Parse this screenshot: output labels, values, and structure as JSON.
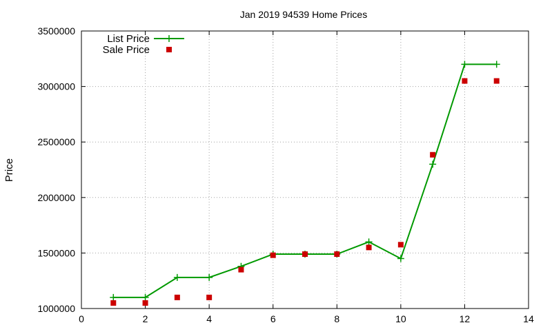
{
  "colors": {
    "list_price": "#009900",
    "sale_price": "#cc0000",
    "grid": "#a0a0a0",
    "axis": "#000000",
    "background": "#ffffff"
  },
  "chart_data": {
    "type": "line",
    "title": "Jan 2019 94539 Home Prices",
    "xlabel": "",
    "ylabel": "Price",
    "xlim": [
      0,
      14
    ],
    "ylim": [
      1000000,
      3500000
    ],
    "x_ticks": [
      0,
      2,
      4,
      6,
      8,
      10,
      12,
      14
    ],
    "y_ticks": [
      1000000,
      1500000,
      2000000,
      2500000,
      3000000,
      3500000
    ],
    "x_tick_labels": [
      "0",
      "2",
      "4",
      "6",
      "8",
      "10",
      "12",
      "14"
    ],
    "y_tick_labels": [
      "1000000",
      "1500000",
      "2000000",
      "2500000",
      "3000000",
      "3500000"
    ],
    "grid": true,
    "legend_position": "top-left",
    "series": [
      {
        "name": "List Price",
        "style": "lines with plus markers",
        "color": "#009900",
        "x": [
          1,
          2,
          3,
          4,
          5,
          6,
          7,
          8,
          9,
          10,
          11,
          12,
          13
        ],
        "y": [
          1100000,
          1100000,
          1280000,
          1280000,
          1380000,
          1490000,
          1490000,
          1490000,
          1600000,
          1450000,
          2300000,
          3200000,
          3200000
        ]
      },
      {
        "name": "Sale Price",
        "style": "square points",
        "color": "#cc0000",
        "x": [
          1,
          2,
          3,
          4,
          5,
          6,
          7,
          8,
          9,
          10,
          11,
          12,
          13
        ],
        "y": [
          1050000,
          1050000,
          1100000,
          1100000,
          1350000,
          1480000,
          1490000,
          1490000,
          1550000,
          1575000,
          2385000,
          3050000,
          3050000
        ]
      }
    ]
  }
}
